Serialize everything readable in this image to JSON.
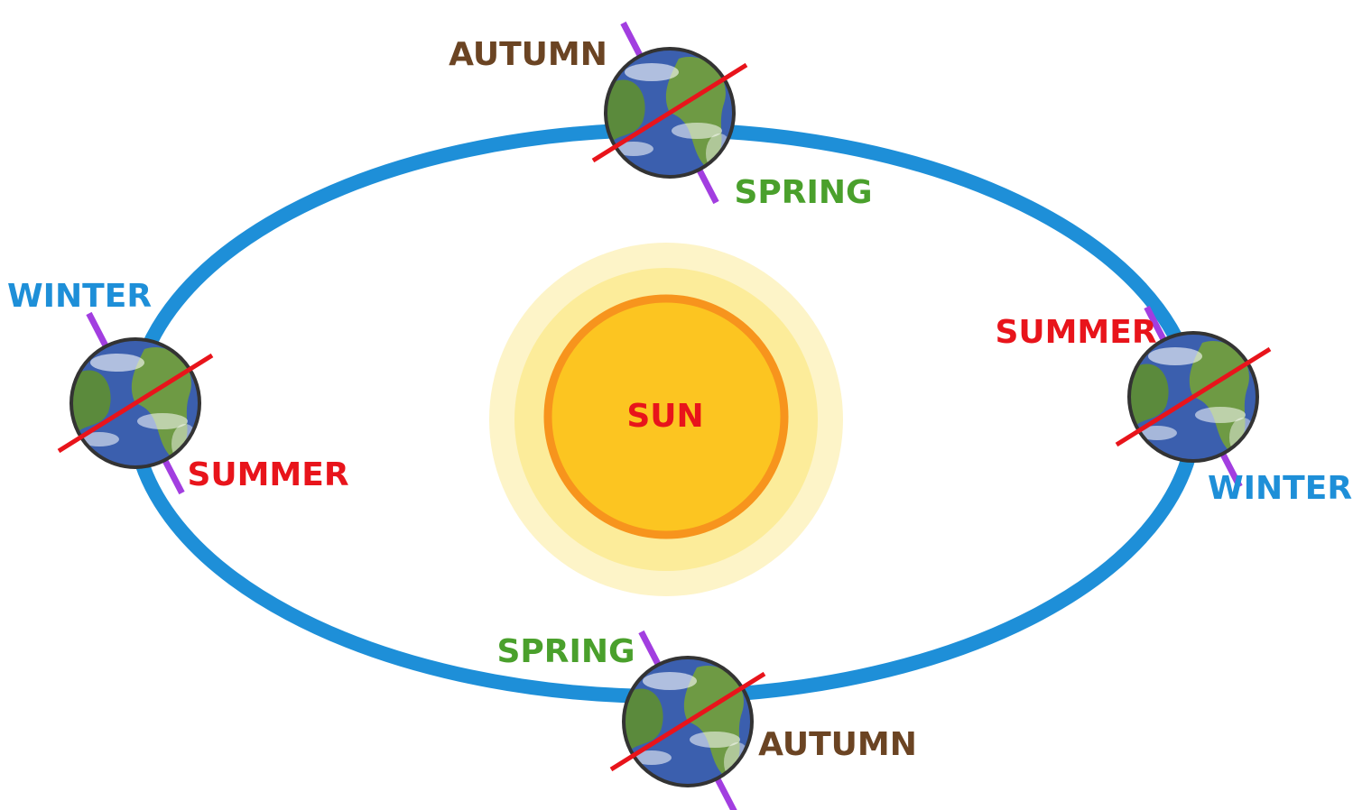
{
  "sun": {
    "label": "SUN"
  },
  "earths": [
    {
      "labels": [
        "AUTUMN",
        "SPRING"
      ]
    },
    {
      "labels": [
        "WINTER",
        "SUMMER"
      ]
    },
    {
      "labels": [
        "SUMMER",
        "WINTER"
      ]
    },
    {
      "labels": [
        "SPRING",
        "AUTUMN"
      ]
    }
  ]
}
